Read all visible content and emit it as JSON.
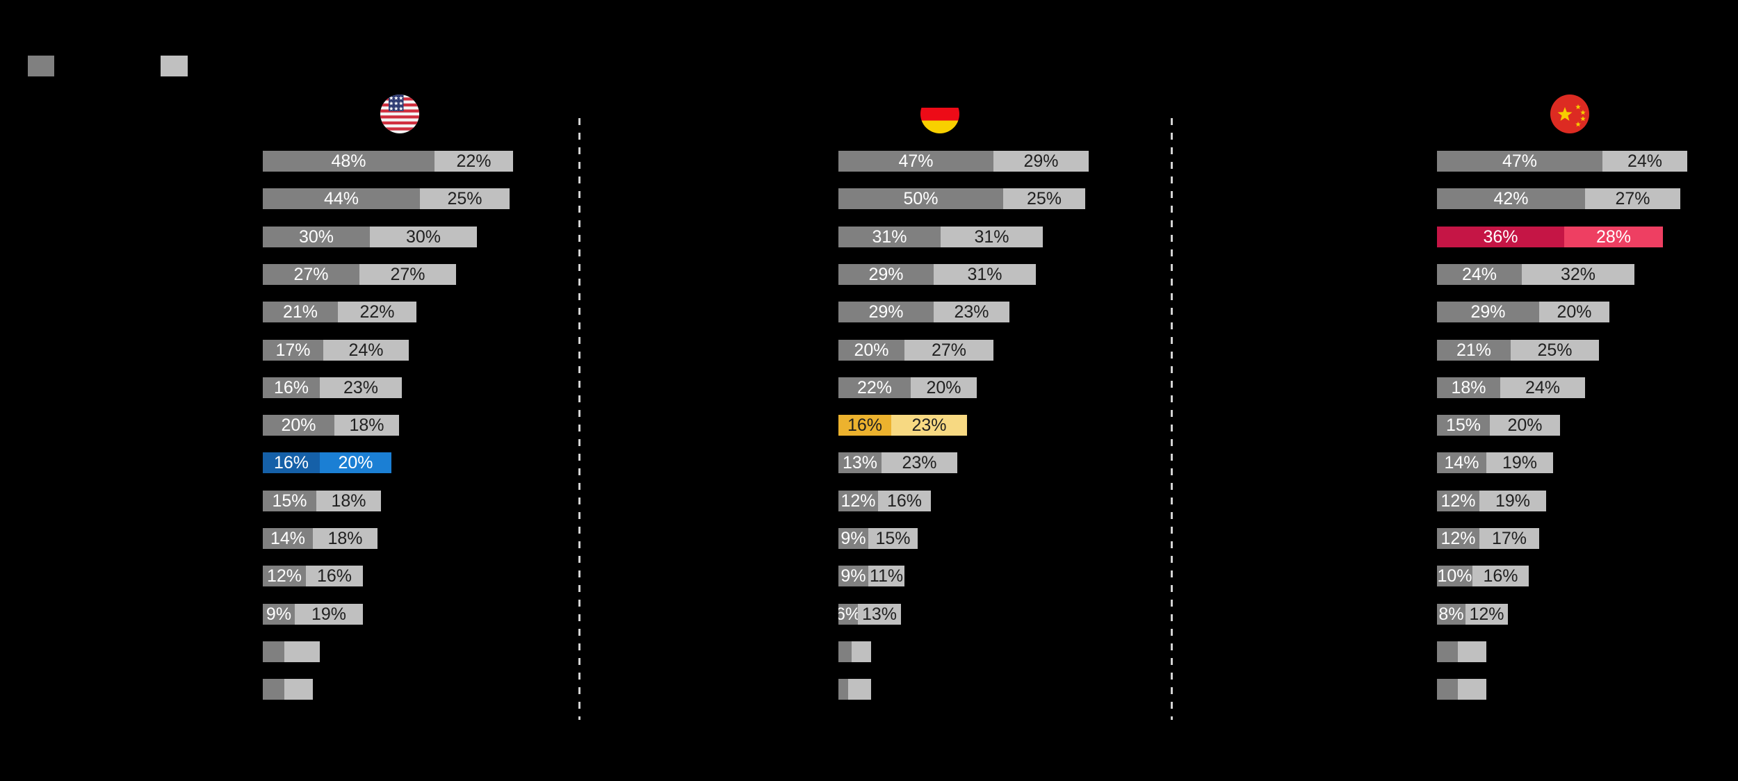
{
  "app": {
    "background": "#000000"
  },
  "legend": {
    "items": [
      {
        "name": "primary-series-swatch",
        "color": "#808080"
      },
      {
        "name": "secondary-series-swatch",
        "color": "#c0c0c0"
      }
    ]
  },
  "chart_data": {
    "type": "bar",
    "orientation": "horizontal",
    "stacked": true,
    "unit": "percent",
    "note": "Three country panels of two-segment stacked bars sorted by total; rows without visible labels are pixel-estimated values.",
    "palettes": {
      "gray": {
        "fills": [
          "#808080",
          "#c0c0c0"
        ],
        "text": [
          "#ffffff",
          "#1f1f1f"
        ]
      },
      "blue": {
        "fills": [
          "#1560a8",
          "#1b7fd4"
        ],
        "text": [
          "#ffffff",
          "#ffffff"
        ]
      },
      "yellow": {
        "fills": [
          "#ecb22e",
          "#f7d982"
        ],
        "text": [
          "#1f1f1f",
          "#1f1f1f"
        ]
      },
      "red": {
        "fills": [
          "#c51545",
          "#ee3f62"
        ],
        "text": [
          "#ffffff",
          "#ffffff"
        ]
      }
    },
    "panels": [
      {
        "country": "United States",
        "flag": "us",
        "rows": [
          {
            "values": [
              48,
              22
            ],
            "labels": [
              "48%",
              "22%"
            ],
            "palette": "gray"
          },
          {
            "values": [
              44,
              25
            ],
            "labels": [
              "44%",
              "25%"
            ],
            "palette": "gray"
          },
          {
            "values": [
              30,
              30
            ],
            "labels": [
              "30%",
              "30%"
            ],
            "palette": "gray"
          },
          {
            "values": [
              27,
              27
            ],
            "labels": [
              "27%",
              "27%"
            ],
            "palette": "gray"
          },
          {
            "values": [
              21,
              22
            ],
            "labels": [
              "21%",
              "22%"
            ],
            "palette": "gray"
          },
          {
            "values": [
              17,
              24
            ],
            "labels": [
              "17%",
              "24%"
            ],
            "palette": "gray"
          },
          {
            "values": [
              16,
              23
            ],
            "labels": [
              "16%",
              "23%"
            ],
            "palette": "gray"
          },
          {
            "values": [
              20,
              18
            ],
            "labels": [
              "20%",
              "18%"
            ],
            "palette": "gray"
          },
          {
            "values": [
              16,
              20
            ],
            "labels": [
              "16%",
              "20%"
            ],
            "palette": "blue"
          },
          {
            "values": [
              15,
              18
            ],
            "labels": [
              "15%",
              "18%"
            ],
            "palette": "gray"
          },
          {
            "values": [
              14,
              18
            ],
            "labels": [
              "14%",
              "18%"
            ],
            "palette": "gray"
          },
          {
            "values": [
              12,
              16
            ],
            "labels": [
              "12%",
              "16%"
            ],
            "palette": "gray"
          },
          {
            "values": [
              9,
              19
            ],
            "labels": [
              "9%",
              "19%"
            ],
            "palette": "gray"
          },
          {
            "values": [
              6,
              10
            ],
            "labels": [
              "",
              ""
            ],
            "palette": "gray"
          },
          {
            "values": [
              6,
              8
            ],
            "labels": [
              "",
              ""
            ],
            "palette": "gray"
          }
        ]
      },
      {
        "country": "Germany",
        "flag": "de",
        "rows": [
          {
            "values": [
              47,
              29
            ],
            "labels": [
              "47%",
              "29%"
            ],
            "palette": "gray"
          },
          {
            "values": [
              50,
              25
            ],
            "labels": [
              "50%",
              "25%"
            ],
            "palette": "gray"
          },
          {
            "values": [
              31,
              31
            ],
            "labels": [
              "31%",
              "31%"
            ],
            "palette": "gray"
          },
          {
            "values": [
              29,
              31
            ],
            "labels": [
              "29%",
              "31%"
            ],
            "palette": "gray"
          },
          {
            "values": [
              29,
              23
            ],
            "labels": [
              "29%",
              "23%"
            ],
            "palette": "gray"
          },
          {
            "values": [
              20,
              27
            ],
            "labels": [
              "20%",
              "27%"
            ],
            "palette": "gray"
          },
          {
            "values": [
              22,
              20
            ],
            "labels": [
              "22%",
              "20%"
            ],
            "palette": "gray"
          },
          {
            "values": [
              16,
              23
            ],
            "labels": [
              "16%",
              "23%"
            ],
            "palette": "yellow"
          },
          {
            "values": [
              13,
              23
            ],
            "labels": [
              "13%",
              "23%"
            ],
            "palette": "gray"
          },
          {
            "values": [
              12,
              16
            ],
            "labels": [
              "12%",
              "16%"
            ],
            "palette": "gray"
          },
          {
            "values": [
              9,
              15
            ],
            "labels": [
              "9%",
              "15%"
            ],
            "palette": "gray"
          },
          {
            "values": [
              9,
              11
            ],
            "labels": [
              "9%",
              "11%"
            ],
            "palette": "gray"
          },
          {
            "values": [
              6,
              13
            ],
            "labels": [
              "6%",
              "13%"
            ],
            "palette": "gray"
          },
          {
            "values": [
              4,
              6
            ],
            "labels": [
              "",
              ""
            ],
            "palette": "gray"
          },
          {
            "values": [
              3,
              7
            ],
            "labels": [
              "",
              ""
            ],
            "palette": "gray"
          }
        ]
      },
      {
        "country": "China",
        "flag": "cn",
        "rows": [
          {
            "values": [
              47,
              24
            ],
            "labels": [
              "47%",
              "24%"
            ],
            "palette": "gray"
          },
          {
            "values": [
              42,
              27
            ],
            "labels": [
              "42%",
              "27%"
            ],
            "palette": "gray"
          },
          {
            "values": [
              36,
              28
            ],
            "labels": [
              "36%",
              "28%"
            ],
            "palette": "red"
          },
          {
            "values": [
              24,
              32
            ],
            "labels": [
              "24%",
              "32%"
            ],
            "palette": "gray"
          },
          {
            "values": [
              29,
              20
            ],
            "labels": [
              "29%",
              "20%"
            ],
            "palette": "gray"
          },
          {
            "values": [
              21,
              25
            ],
            "labels": [
              "21%",
              "25%"
            ],
            "palette": "gray"
          },
          {
            "values": [
              18,
              24
            ],
            "labels": [
              "18%",
              "24%"
            ],
            "palette": "gray"
          },
          {
            "values": [
              15,
              20
            ],
            "labels": [
              "15%",
              "20%"
            ],
            "palette": "gray"
          },
          {
            "values": [
              14,
              19
            ],
            "labels": [
              "14%",
              "19%"
            ],
            "palette": "gray"
          },
          {
            "values": [
              12,
              19
            ],
            "labels": [
              "12%",
              "19%"
            ],
            "palette": "gray"
          },
          {
            "values": [
              12,
              17
            ],
            "labels": [
              "12%",
              "17%"
            ],
            "palette": "gray"
          },
          {
            "values": [
              10,
              16
            ],
            "labels": [
              "10%",
              "16%"
            ],
            "palette": "gray"
          },
          {
            "values": [
              8,
              12
            ],
            "labels": [
              "8%",
              "12%"
            ],
            "palette": "gray"
          },
          {
            "values": [
              6,
              8
            ],
            "labels": [
              "",
              ""
            ],
            "palette": "gray"
          },
          {
            "values": [
              6,
              8
            ],
            "labels": [
              "",
              ""
            ],
            "palette": "gray"
          }
        ]
      }
    ]
  }
}
